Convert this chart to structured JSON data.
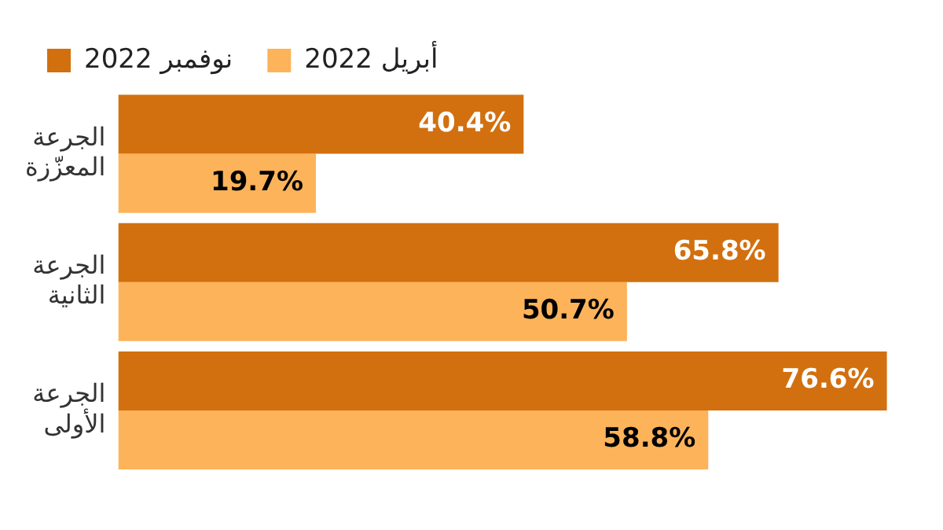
{
  "chart_data": {
    "type": "bar",
    "orientation": "horizontal",
    "categories": [
      "الجرعة المعزّزة",
      "الجرعة الثانية",
      "الجرعة الأولى"
    ],
    "series": [
      {
        "name": "نوفمبر 2022",
        "color": "#d2700f",
        "values": [
          40.4,
          65.8,
          76.6
        ],
        "value_labels": [
          "40.4%",
          "65.8%",
          "76.6%"
        ]
      },
      {
        "name": "أبريل 2022",
        "color": "#fdb35a",
        "values": [
          19.7,
          50.7,
          58.8
        ],
        "value_labels": [
          "19.7%",
          "50.7%",
          "58.8%"
        ]
      }
    ],
    "legend": "top left",
    "grid": false
  }
}
